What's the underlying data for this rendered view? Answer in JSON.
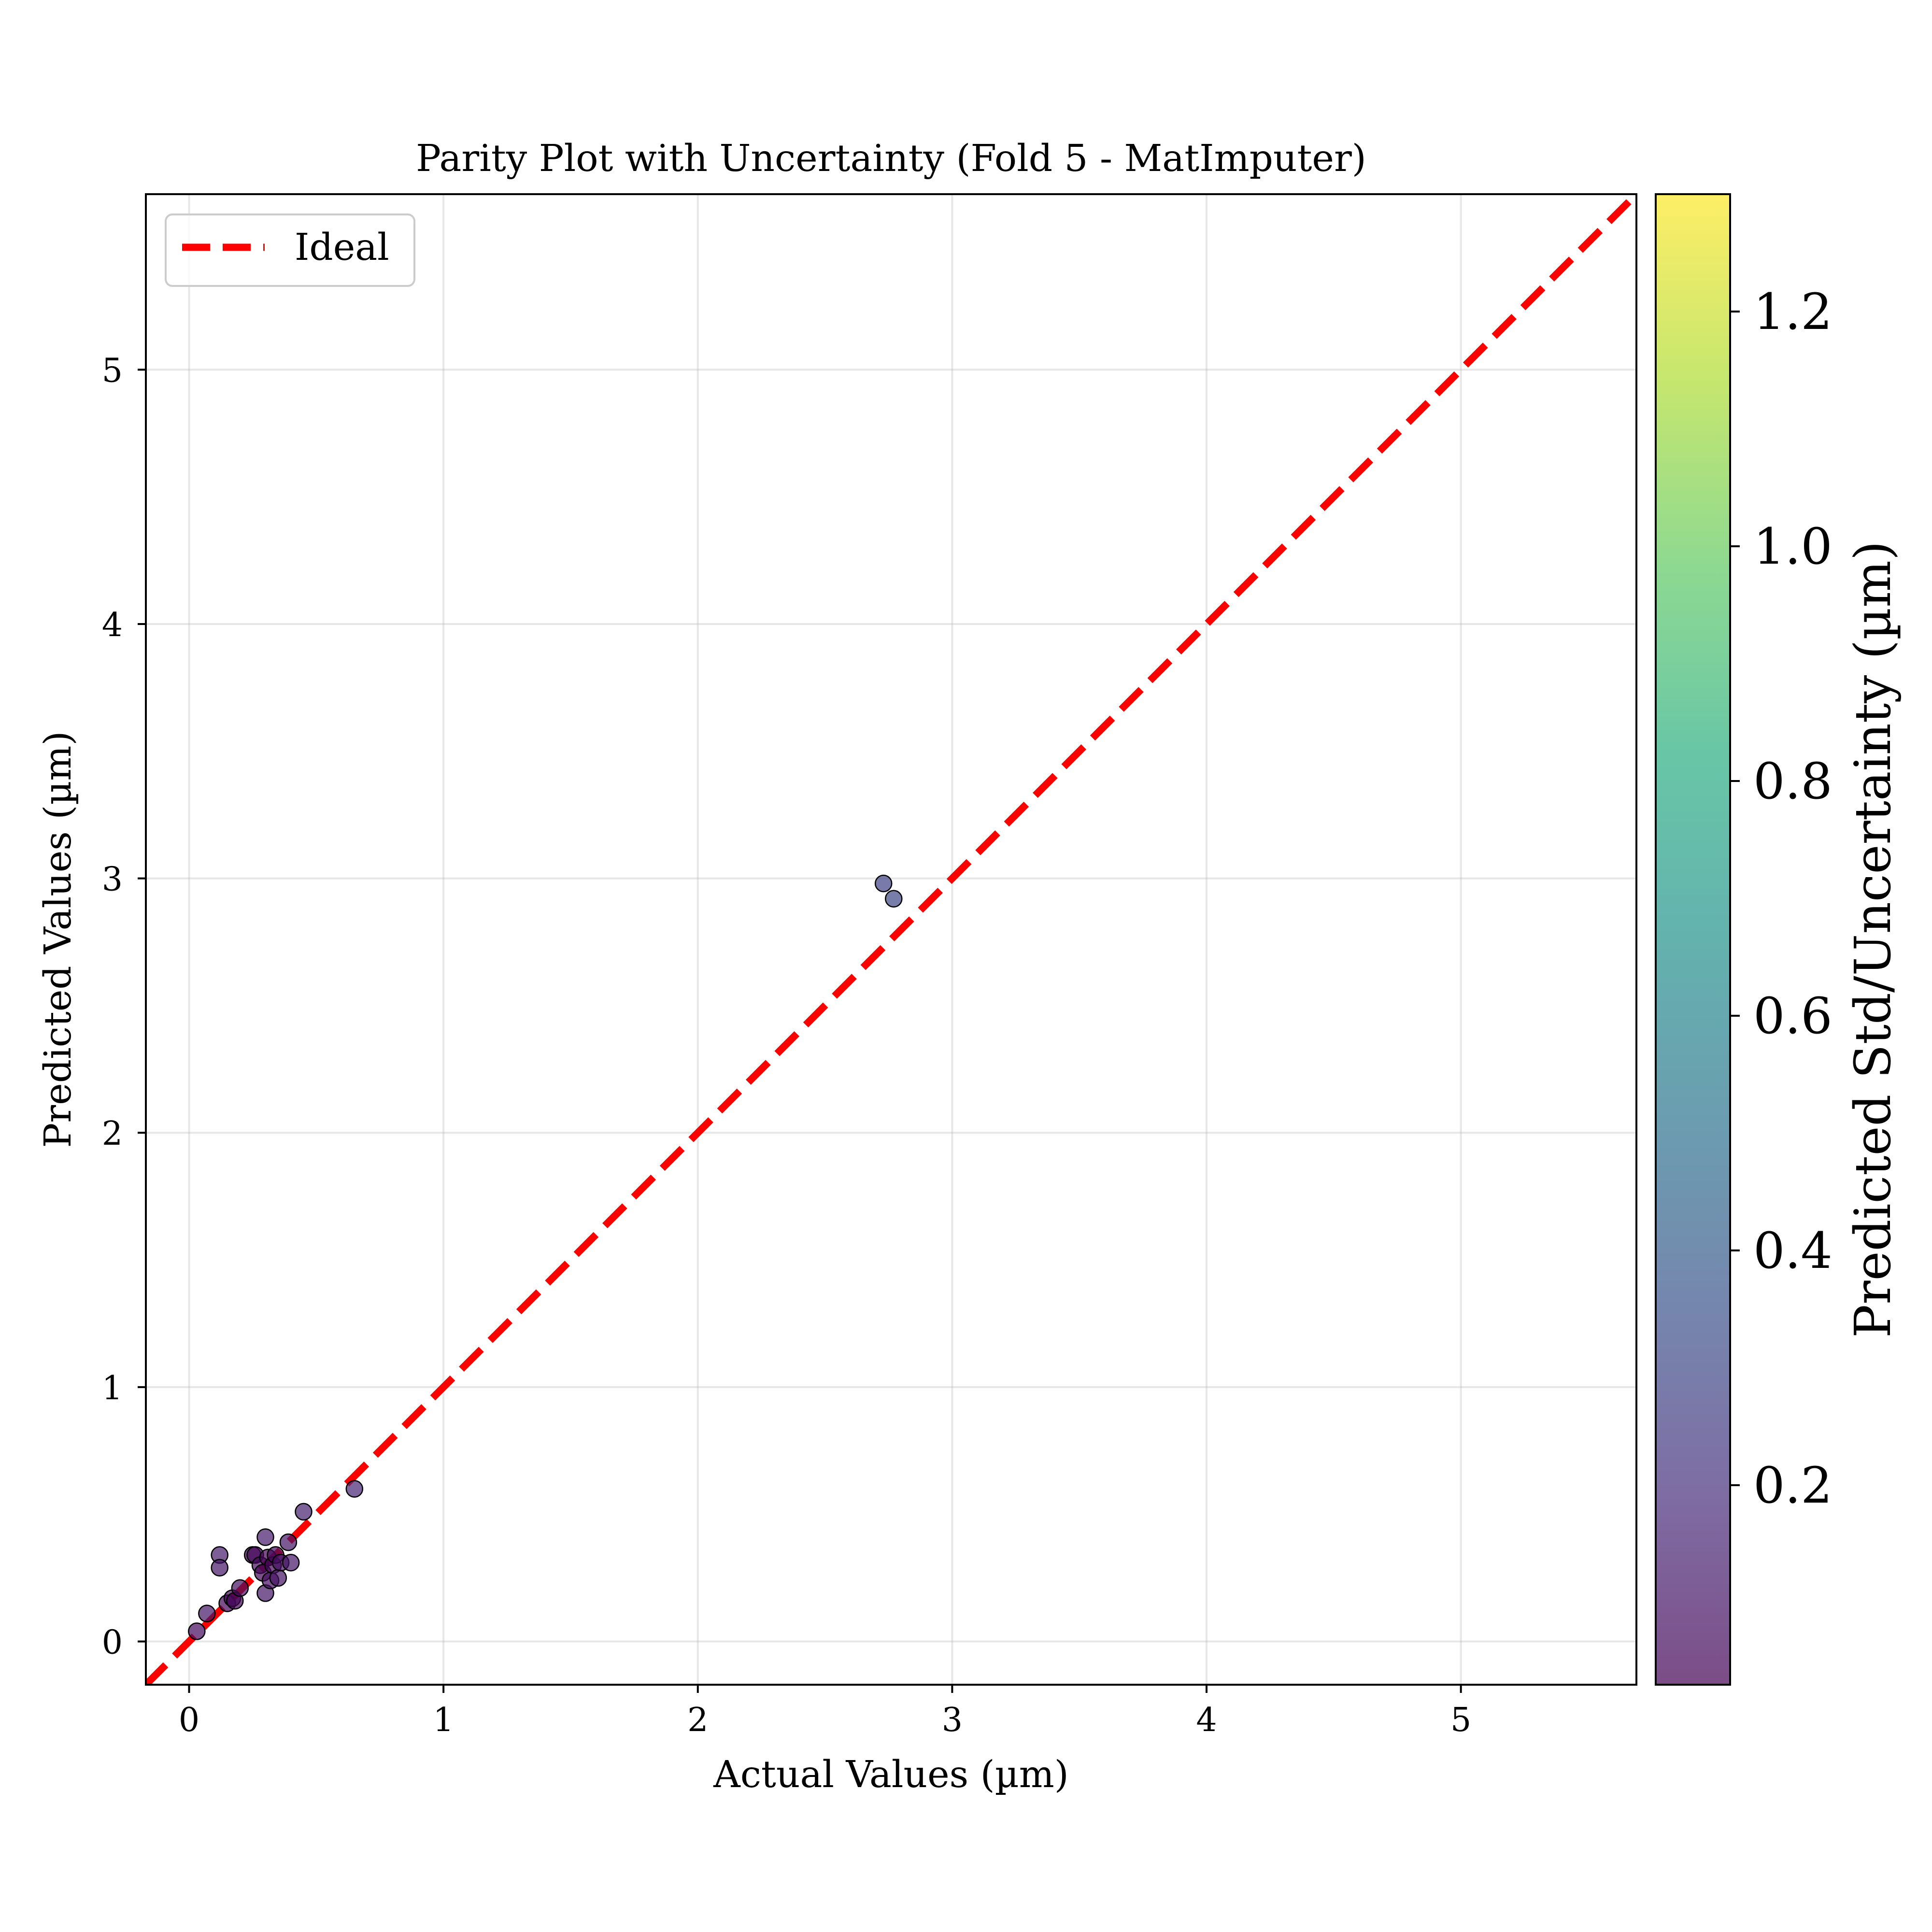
{
  "chart_data": {
    "type": "scatter",
    "title": "Parity Plot with Uncertainty (Fold 5 - MatImputer)",
    "xlabel": "Actual Values (µm)",
    "ylabel": "Predicted Values (µm)",
    "xlim": [
      -0.17,
      5.69
    ],
    "ylim": [
      -0.17,
      5.69
    ],
    "xticks": [
      0,
      1,
      2,
      3,
      4,
      5
    ],
    "yticks": [
      0,
      1,
      2,
      3,
      4,
      5
    ],
    "grid": true,
    "legend": {
      "position": "top-left",
      "entries": [
        "Ideal"
      ]
    },
    "ideal_line": {
      "name": "Ideal",
      "color": "#ff0000",
      "from": [
        -0.17,
        -0.17
      ],
      "to": [
        5.69,
        5.69
      ]
    },
    "colorbar": {
      "label": "Predicted Std/Uncertainty (µm)",
      "range": [
        0.03,
        1.3
      ],
      "ticks": [
        0.2,
        0.4,
        0.6,
        0.8,
        1.0,
        1.2
      ],
      "tick_labels": [
        "0.2",
        "0.4",
        "0.6",
        "0.8",
        "1.0",
        "1.2"
      ],
      "colormap": "viridis"
    },
    "points": [
      {
        "x": 0.03,
        "y": 0.04,
        "std": 0.06
      },
      {
        "x": 0.07,
        "y": 0.11,
        "std": 0.1
      },
      {
        "x": 0.12,
        "y": 0.34,
        "std": 0.12
      },
      {
        "x": 0.12,
        "y": 0.29,
        "std": 0.1
      },
      {
        "x": 0.15,
        "y": 0.15,
        "std": 0.05
      },
      {
        "x": 0.17,
        "y": 0.17,
        "std": 0.06
      },
      {
        "x": 0.18,
        "y": 0.16,
        "std": 0.05
      },
      {
        "x": 0.2,
        "y": 0.21,
        "std": 0.08
      },
      {
        "x": 0.25,
        "y": 0.34,
        "std": 0.05
      },
      {
        "x": 0.26,
        "y": 0.34,
        "std": 0.06
      },
      {
        "x": 0.28,
        "y": 0.3,
        "std": 0.07
      },
      {
        "x": 0.29,
        "y": 0.27,
        "std": 0.05
      },
      {
        "x": 0.3,
        "y": 0.41,
        "std": 0.12
      },
      {
        "x": 0.3,
        "y": 0.19,
        "std": 0.1
      },
      {
        "x": 0.31,
        "y": 0.33,
        "std": 0.04
      },
      {
        "x": 0.32,
        "y": 0.24,
        "std": 0.08
      },
      {
        "x": 0.33,
        "y": 0.3,
        "std": 0.06
      },
      {
        "x": 0.34,
        "y": 0.34,
        "std": 0.07
      },
      {
        "x": 0.35,
        "y": 0.25,
        "std": 0.09
      },
      {
        "x": 0.36,
        "y": 0.31,
        "std": 0.08
      },
      {
        "x": 0.39,
        "y": 0.39,
        "std": 0.1
      },
      {
        "x": 0.4,
        "y": 0.31,
        "std": 0.1
      },
      {
        "x": 0.45,
        "y": 0.51,
        "std": 0.14
      },
      {
        "x": 0.65,
        "y": 0.6,
        "std": 0.16
      },
      {
        "x": 2.73,
        "y": 2.98,
        "std": 0.28
      },
      {
        "x": 2.77,
        "y": 2.92,
        "std": 0.3
      }
    ]
  }
}
